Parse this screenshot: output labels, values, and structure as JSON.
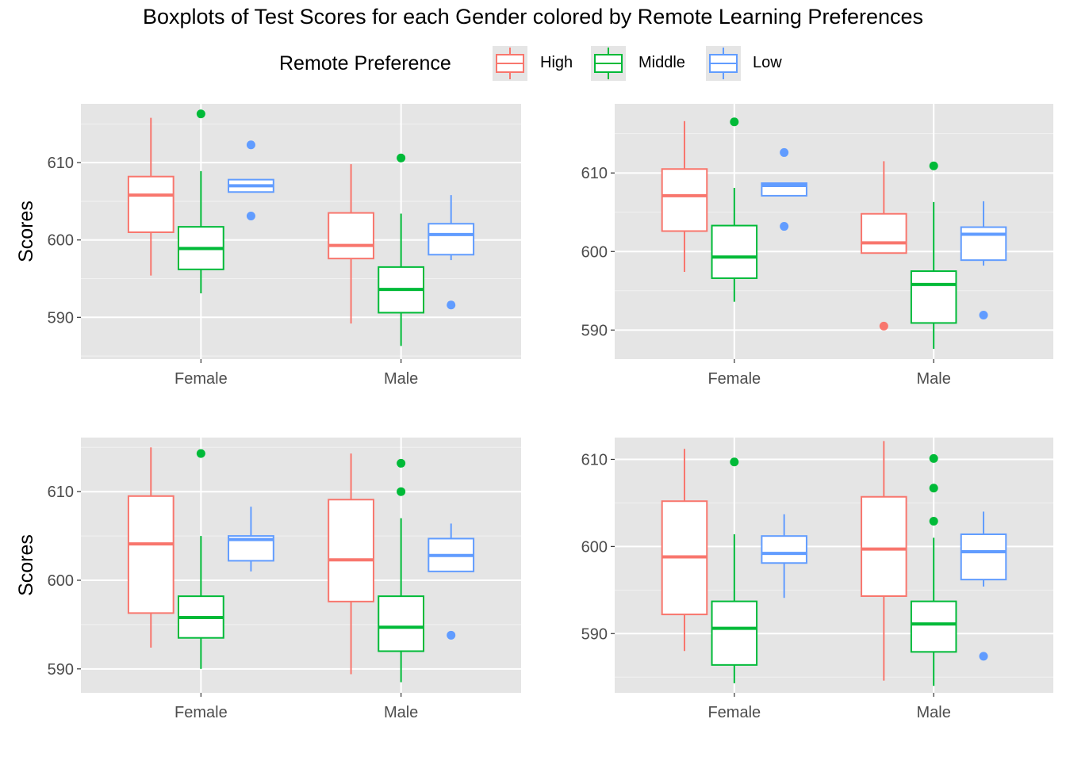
{
  "title": "Boxplots of Test Scores for each Gender colored by Remote Learning Preferences",
  "legend": {
    "title": "Remote Preference",
    "entries": [
      {
        "label": "High",
        "color": "#F8766D"
      },
      {
        "label": "Middle",
        "color": "#00BA38"
      },
      {
        "label": "Low",
        "color": "#619CFF"
      }
    ]
  },
  "chart_data": [
    {
      "type": "boxplot",
      "ylabel": "Scores",
      "xlabel": "",
      "categories": [
        "Female",
        "Male"
      ],
      "ylim": [
        584.6,
        617.6
      ],
      "yticks": [
        590,
        600,
        610
      ],
      "groups": [
        {
          "category": "Female",
          "series": "High",
          "min": 595.4,
          "q1": 601.0,
          "median": 605.8,
          "q3": 608.2,
          "max": 615.8,
          "outliers": []
        },
        {
          "category": "Female",
          "series": "Middle",
          "min": 593.1,
          "q1": 596.2,
          "median": 598.9,
          "q3": 601.7,
          "max": 608.9,
          "outliers": [
            616.3
          ]
        },
        {
          "category": "Female",
          "series": "Low",
          "min": 606.2,
          "q1": 606.2,
          "median": 607.0,
          "q3": 607.8,
          "max": 607.8,
          "outliers": [
            612.3,
            603.1
          ]
        },
        {
          "category": "Male",
          "series": "High",
          "min": 589.2,
          "q1": 597.6,
          "median": 599.3,
          "q3": 603.5,
          "max": 609.8,
          "outliers": []
        },
        {
          "category": "Male",
          "series": "Middle",
          "min": 586.3,
          "q1": 590.6,
          "median": 593.6,
          "q3": 596.5,
          "max": 603.4,
          "outliers": [
            610.6
          ]
        },
        {
          "category": "Male",
          "series": "Low",
          "min": 597.4,
          "q1": 598.1,
          "median": 600.7,
          "q3": 602.1,
          "max": 605.8,
          "outliers": [
            591.6
          ]
        }
      ]
    },
    {
      "type": "boxplot",
      "ylabel": "",
      "xlabel": "",
      "categories": [
        "Female",
        "Male"
      ],
      "ylim": [
        586.3,
        618.8
      ],
      "yticks": [
        590,
        600,
        610
      ],
      "groups": [
        {
          "category": "Female",
          "series": "High",
          "min": 597.4,
          "q1": 602.6,
          "median": 607.1,
          "q3": 610.5,
          "max": 616.6,
          "outliers": []
        },
        {
          "category": "Female",
          "series": "Middle",
          "min": 593.6,
          "q1": 596.6,
          "median": 599.3,
          "q3": 603.3,
          "max": 608.1,
          "outliers": [
            616.5
          ]
        },
        {
          "category": "Female",
          "series": "Low",
          "min": 607.1,
          "q1": 607.1,
          "median": 608.4,
          "q3": 608.7,
          "max": 608.7,
          "outliers": [
            612.6,
            603.2
          ]
        },
        {
          "category": "Male",
          "series": "High",
          "min": 599.8,
          "q1": 599.8,
          "median": 601.1,
          "q3": 604.8,
          "max": 611.5,
          "outliers": [
            590.5
          ]
        },
        {
          "category": "Male",
          "series": "Middle",
          "min": 587.6,
          "q1": 590.9,
          "median": 595.8,
          "q3": 597.5,
          "max": 606.3,
          "outliers": [
            610.9
          ]
        },
        {
          "category": "Male",
          "series": "Low",
          "min": 598.2,
          "q1": 598.9,
          "median": 602.2,
          "q3": 603.1,
          "max": 606.4,
          "outliers": [
            591.9
          ]
        }
      ]
    },
    {
      "type": "boxplot",
      "ylabel": "Scores",
      "xlabel": "",
      "categories": [
        "Female",
        "Male"
      ],
      "ylim": [
        587.3,
        616.1
      ],
      "yticks": [
        590,
        600,
        610
      ],
      "groups": [
        {
          "category": "Female",
          "series": "High",
          "min": 592.4,
          "q1": 596.3,
          "median": 604.1,
          "q3": 609.5,
          "max": 615.0,
          "outliers": []
        },
        {
          "category": "Female",
          "series": "Middle",
          "min": 590.0,
          "q1": 593.5,
          "median": 595.8,
          "q3": 598.2,
          "max": 605.0,
          "outliers": [
            614.3
          ]
        },
        {
          "category": "Female",
          "series": "Low",
          "min": 601.0,
          "q1": 602.2,
          "median": 604.6,
          "q3": 605.0,
          "max": 608.3,
          "outliers": []
        },
        {
          "category": "Male",
          "series": "High",
          "min": 589.4,
          "q1": 597.6,
          "median": 602.3,
          "q3": 609.1,
          "max": 614.3,
          "outliers": []
        },
        {
          "category": "Male",
          "series": "Middle",
          "min": 588.5,
          "q1": 592.0,
          "median": 594.7,
          "q3": 598.2,
          "max": 607.0,
          "outliers": [
            613.2,
            610.0
          ]
        },
        {
          "category": "Male",
          "series": "Low",
          "min": 601.0,
          "q1": 601.0,
          "median": 602.8,
          "q3": 604.7,
          "max": 606.4,
          "outliers": [
            593.8
          ]
        }
      ]
    },
    {
      "type": "boxplot",
      "ylabel": "",
      "xlabel": "",
      "categories": [
        "Female",
        "Male"
      ],
      "ylim": [
        583.2,
        612.5
      ],
      "yticks": [
        590,
        600,
        610
      ],
      "groups": [
        {
          "category": "Female",
          "series": "High",
          "min": 588.0,
          "q1": 592.2,
          "median": 598.8,
          "q3": 605.2,
          "max": 611.2,
          "outliers": []
        },
        {
          "category": "Female",
          "series": "Middle",
          "min": 584.3,
          "q1": 586.4,
          "median": 590.6,
          "q3": 593.7,
          "max": 601.4,
          "outliers": [
            609.7
          ]
        },
        {
          "category": "Female",
          "series": "Low",
          "min": 594.1,
          "q1": 598.1,
          "median": 599.2,
          "q3": 601.2,
          "max": 603.7,
          "outliers": []
        },
        {
          "category": "Male",
          "series": "High",
          "min": 584.6,
          "q1": 594.3,
          "median": 599.7,
          "q3": 605.7,
          "max": 612.1,
          "outliers": []
        },
        {
          "category": "Male",
          "series": "Middle",
          "min": 584.0,
          "q1": 587.9,
          "median": 591.1,
          "q3": 593.7,
          "max": 601.0,
          "outliers": [
            610.1,
            606.7,
            602.9
          ]
        },
        {
          "category": "Male",
          "series": "Low",
          "min": 595.4,
          "q1": 596.2,
          "median": 599.4,
          "q3": 601.4,
          "max": 604.0,
          "outliers": [
            587.4
          ]
        }
      ]
    }
  ]
}
